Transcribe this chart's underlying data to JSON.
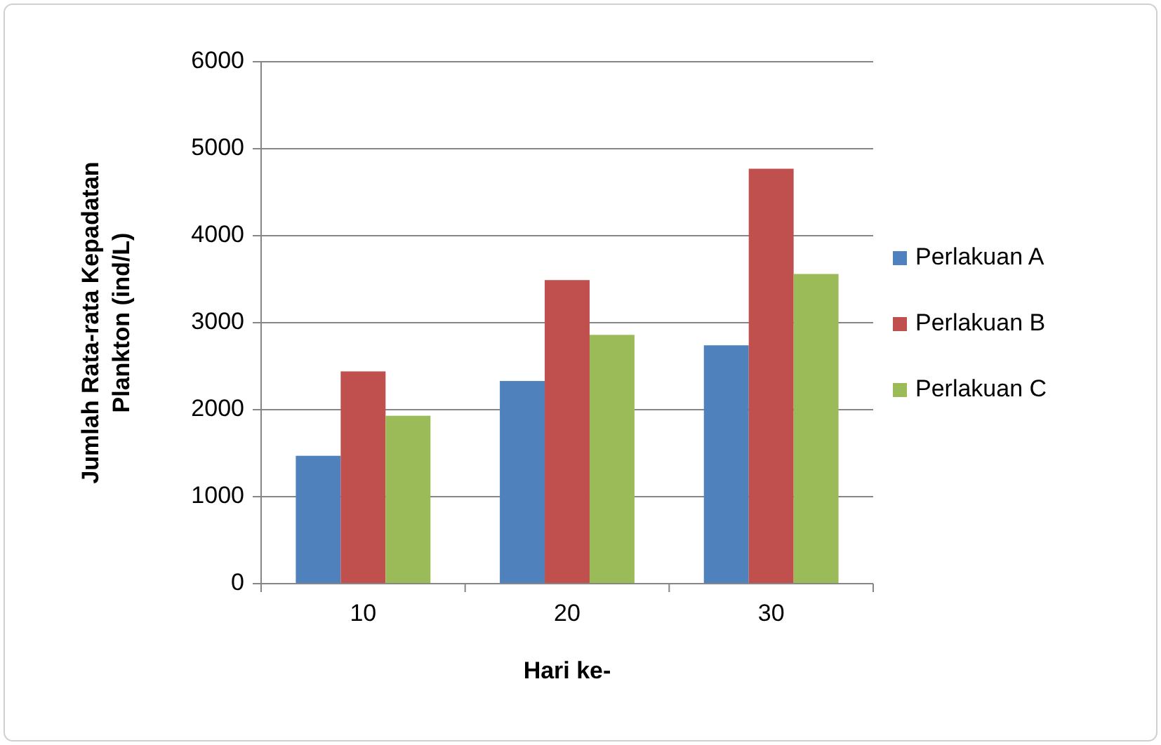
{
  "chart_data": {
    "type": "bar",
    "xlabel": "Hari ke-",
    "ylabel": "Jumlah Rata-rata Kepadatan Plankton (ind/L)",
    "categories": [
      "10",
      "20",
      "30"
    ],
    "series": [
      {
        "name": "Perlakuan A",
        "color": "#4f81bd",
        "values": [
          1470,
          2330,
          2740
        ]
      },
      {
        "name": "Perlakuan B",
        "color": "#c0504d",
        "values": [
          2440,
          3490,
          4770
        ]
      },
      {
        "name": "Perlakuan C",
        "color": "#9bbb59",
        "values": [
          1930,
          2860,
          3560
        ]
      }
    ],
    "ylim": [
      0,
      6000
    ],
    "yticks": [
      0,
      1000,
      2000,
      3000,
      4000,
      5000,
      6000
    ],
    "grid": "y",
    "legend": "right"
  }
}
